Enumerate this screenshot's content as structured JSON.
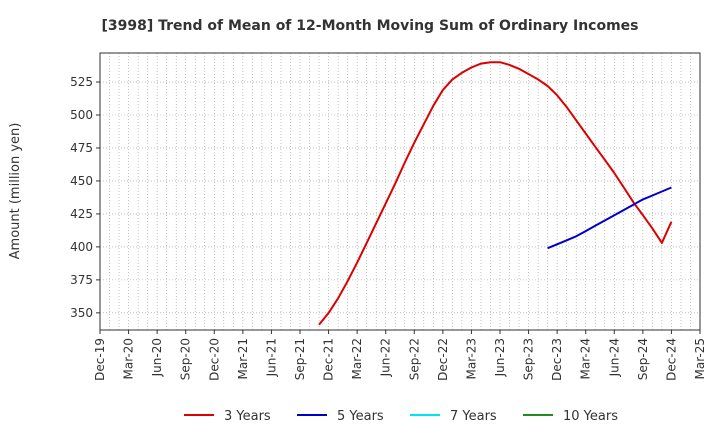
{
  "chart_data": {
    "type": "line",
    "title": "[3998]  Trend of Mean of 12-Month Moving Sum of Ordinary Incomes",
    "ylabel": "Amount (million yen)",
    "xlabel": "",
    "ylim": [
      337,
      547
    ],
    "yticks": [
      350,
      375,
      400,
      425,
      450,
      475,
      500,
      525
    ],
    "categories": [
      "Dec-19",
      "Mar-20",
      "Jun-20",
      "Sep-20",
      "Dec-20",
      "Mar-21",
      "Jun-21",
      "Sep-21",
      "Dec-21",
      "Mar-22",
      "Jun-22",
      "Sep-22",
      "Dec-22",
      "Mar-23",
      "Jun-23",
      "Sep-23",
      "Dec-23",
      "Mar-24",
      "Jun-24",
      "Sep-24",
      "Dec-24",
      "Mar-25"
    ],
    "grid": true,
    "legend_position": "bottom",
    "series": [
      {
        "name": "3 Years",
        "color": "#dd0000",
        "points": [
          [
            "Nov-21",
            341
          ],
          [
            "Dec-21",
            350
          ],
          [
            "Jan-22",
            361
          ],
          [
            "Feb-22",
            374
          ],
          [
            "Mar-22",
            388
          ],
          [
            "Apr-22",
            403
          ],
          [
            "May-22",
            418
          ],
          [
            "Jun-22",
            433
          ],
          [
            "Jul-22",
            448
          ],
          [
            "Aug-22",
            464
          ],
          [
            "Sep-22",
            479
          ],
          [
            "Oct-22",
            493
          ],
          [
            "Nov-22",
            507
          ],
          [
            "Dec-22",
            519
          ],
          [
            "Jan-23",
            527
          ],
          [
            "Feb-23",
            532
          ],
          [
            "Mar-23",
            536
          ],
          [
            "Apr-23",
            539
          ],
          [
            "May-23",
            540
          ],
          [
            "Jun-23",
            540
          ],
          [
            "Jul-23",
            538
          ],
          [
            "Aug-23",
            535
          ],
          [
            "Sep-23",
            531
          ],
          [
            "Oct-23",
            527
          ],
          [
            "Nov-23",
            522
          ],
          [
            "Dec-23",
            515
          ],
          [
            "Jan-24",
            506
          ],
          [
            "Feb-24",
            496
          ],
          [
            "Mar-24",
            486
          ],
          [
            "Apr-24",
            476
          ],
          [
            "May-24",
            466
          ],
          [
            "Jun-24",
            456
          ],
          [
            "Jul-24",
            445
          ],
          [
            "Aug-24",
            434
          ],
          [
            "Sep-24",
            424
          ],
          [
            "Oct-24",
            414
          ],
          [
            "Nov-24",
            403
          ],
          [
            "Dec-24",
            419
          ]
        ]
      },
      {
        "name": "5 Years",
        "color": "#0000cc",
        "points": [
          [
            "Nov-23",
            399
          ],
          [
            "Dec-23",
            402
          ],
          [
            "Jan-24",
            405
          ],
          [
            "Feb-24",
            408
          ],
          [
            "Mar-24",
            412
          ],
          [
            "Apr-24",
            416
          ],
          [
            "May-24",
            420
          ],
          [
            "Jun-24",
            424
          ],
          [
            "Jul-24",
            428
          ],
          [
            "Aug-24",
            432
          ],
          [
            "Sep-24",
            436
          ],
          [
            "Oct-24",
            439
          ],
          [
            "Nov-24",
            442
          ],
          [
            "Dec-24",
            445
          ]
        ]
      },
      {
        "name": "7 Years",
        "color": "#00e5ee",
        "points": []
      },
      {
        "name": "10 Years",
        "color": "#228b22",
        "points": []
      }
    ]
  }
}
